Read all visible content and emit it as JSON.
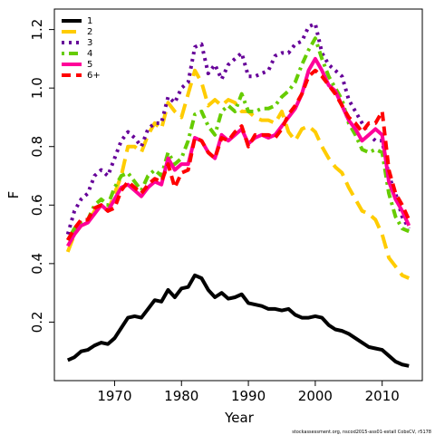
{
  "chart_data": {
    "type": "line",
    "xlabel": "Year",
    "ylabel": "F",
    "footnote": "stockassessment.org, nscod2015-ass01-estall CobsCV, r5178",
    "x": [
      1963,
      1964,
      1965,
      1966,
      1967,
      1968,
      1969,
      1970,
      1971,
      1972,
      1973,
      1974,
      1975,
      1976,
      1977,
      1978,
      1979,
      1980,
      1981,
      1982,
      1983,
      1984,
      1985,
      1986,
      1987,
      1988,
      1989,
      1990,
      1991,
      1992,
      1993,
      1994,
      1995,
      1996,
      1997,
      1998,
      1999,
      2000,
      2001,
      2002,
      2003,
      2004,
      2005,
      2006,
      2007,
      2008,
      2009,
      2010,
      2011,
      2012,
      2013,
      2014
    ],
    "xlim": [
      1961,
      2016
    ],
    "xticks": [
      1970,
      1980,
      1990,
      2000,
      2010
    ],
    "ylim": [
      0,
      1.27
    ],
    "yticks": [
      0.2,
      0.4,
      0.6,
      0.8,
      {
        "value": 1,
        "label": "1.0"
      },
      1.2
    ],
    "legend": "top-left",
    "series": [
      {
        "name": "1",
        "color": "#000000",
        "dash": "solid",
        "values": [
          0.07,
          0.08,
          0.1,
          0.105,
          0.12,
          0.13,
          0.125,
          0.145,
          0.18,
          0.215,
          0.22,
          0.215,
          0.245,
          0.275,
          0.27,
          0.31,
          0.285,
          0.315,
          0.32,
          0.36,
          0.35,
          0.31,
          0.285,
          0.3,
          0.28,
          0.285,
          0.295,
          0.265,
          0.26,
          0.255,
          0.245,
          0.245,
          0.24,
          0.245,
          0.225,
          0.215,
          0.215,
          0.22,
          0.215,
          0.19,
          0.175,
          0.17,
          0.16,
          0.145,
          0.13,
          0.115,
          0.11,
          0.105,
          0.085,
          0.065,
          0.055,
          0.05
        ]
      },
      {
        "name": "2",
        "color": "#ffcc00",
        "dash": "longdash",
        "values": [
          0.44,
          0.5,
          0.53,
          0.54,
          0.58,
          0.6,
          0.58,
          0.64,
          0.7,
          0.8,
          0.8,
          0.78,
          0.84,
          0.88,
          0.86,
          0.95,
          0.92,
          0.9,
          0.98,
          1.06,
          1.02,
          0.94,
          0.96,
          0.94,
          0.96,
          0.95,
          0.92,
          0.92,
          0.9,
          0.89,
          0.89,
          0.88,
          0.92,
          0.85,
          0.82,
          0.86,
          0.87,
          0.85,
          0.8,
          0.76,
          0.73,
          0.71,
          0.66,
          0.62,
          0.58,
          0.57,
          0.55,
          0.5,
          0.42,
          0.39,
          0.36,
          0.35
        ]
      },
      {
        "name": "3",
        "color": "#660099",
        "dash": "dotted",
        "values": [
          0.5,
          0.58,
          0.62,
          0.64,
          0.7,
          0.72,
          0.7,
          0.76,
          0.82,
          0.85,
          0.83,
          0.8,
          0.86,
          0.88,
          0.88,
          0.97,
          0.95,
          1.0,
          1.02,
          1.14,
          1.15,
          1.05,
          1.08,
          1.03,
          1.08,
          1.1,
          1.12,
          1.04,
          1.04,
          1.05,
          1.06,
          1.11,
          1.12,
          1.12,
          1.15,
          1.16,
          1.21,
          1.22,
          1.12,
          1.08,
          1.06,
          1.04,
          0.96,
          0.92,
          0.88,
          0.84,
          0.82,
          0.82,
          0.7,
          0.64,
          0.56,
          0.52
        ]
      },
      {
        "name": "4",
        "color": "#66cc00",
        "dash": "dotdash",
        "values": [
          0.48,
          0.52,
          0.54,
          0.55,
          0.6,
          0.62,
          0.6,
          0.66,
          0.7,
          0.71,
          0.68,
          0.65,
          0.7,
          0.72,
          0.7,
          0.78,
          0.74,
          0.76,
          0.82,
          0.91,
          0.92,
          0.87,
          0.84,
          0.92,
          0.94,
          0.92,
          0.98,
          0.92,
          0.92,
          0.93,
          0.93,
          0.94,
          0.97,
          0.99,
          1.02,
          1.08,
          1.13,
          1.17,
          1.1,
          1.04,
          1.0,
          0.96,
          0.88,
          0.84,
          0.79,
          0.78,
          0.79,
          0.78,
          0.64,
          0.56,
          0.52,
          0.51
        ]
      },
      {
        "name": "5",
        "color": "#ff0099",
        "dash": "solid",
        "values": [
          0.46,
          0.5,
          0.53,
          0.54,
          0.57,
          0.6,
          0.58,
          0.62,
          0.66,
          0.67,
          0.65,
          0.63,
          0.66,
          0.68,
          0.67,
          0.76,
          0.72,
          0.74,
          0.74,
          0.83,
          0.82,
          0.78,
          0.76,
          0.84,
          0.82,
          0.84,
          0.86,
          0.81,
          0.83,
          0.84,
          0.83,
          0.84,
          0.87,
          0.9,
          0.93,
          0.98,
          1.06,
          1.1,
          1.06,
          1.01,
          0.99,
          0.94,
          0.89,
          0.86,
          0.82,
          0.84,
          0.86,
          0.84,
          0.68,
          0.62,
          0.58,
          0.53
        ]
      },
      {
        "name": "6+",
        "color": "#ff0000",
        "dash": "dashed",
        "values": [
          0.48,
          0.52,
          0.55,
          0.55,
          0.59,
          0.6,
          0.58,
          0.59,
          0.65,
          0.68,
          0.66,
          0.64,
          0.67,
          0.69,
          0.68,
          0.74,
          0.66,
          0.71,
          0.72,
          0.83,
          0.82,
          0.78,
          0.76,
          0.83,
          0.82,
          0.85,
          0.87,
          0.8,
          0.84,
          0.84,
          0.84,
          0.83,
          0.86,
          0.91,
          0.94,
          0.98,
          1.04,
          1.06,
          1.04,
          1.01,
          0.98,
          0.94,
          0.9,
          0.88,
          0.85,
          0.88,
          0.88,
          0.92,
          0.72,
          0.64,
          0.6,
          0.55
        ]
      }
    ]
  }
}
